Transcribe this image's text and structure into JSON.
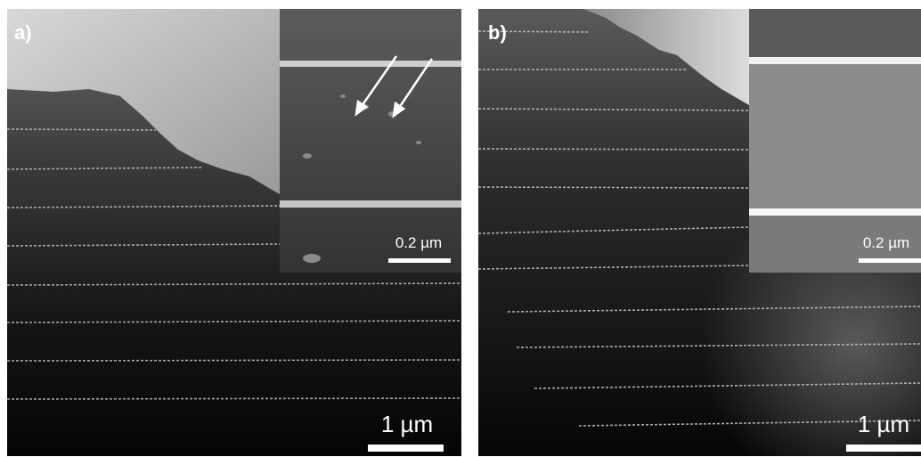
{
  "panels": [
    {
      "label": "a)",
      "scale_bar": "1 µm",
      "inset_scale_bar": "0.2 µm"
    },
    {
      "label": "b)",
      "scale_bar": "1 µm",
      "inset_scale_bar": "0.2 µm"
    }
  ]
}
